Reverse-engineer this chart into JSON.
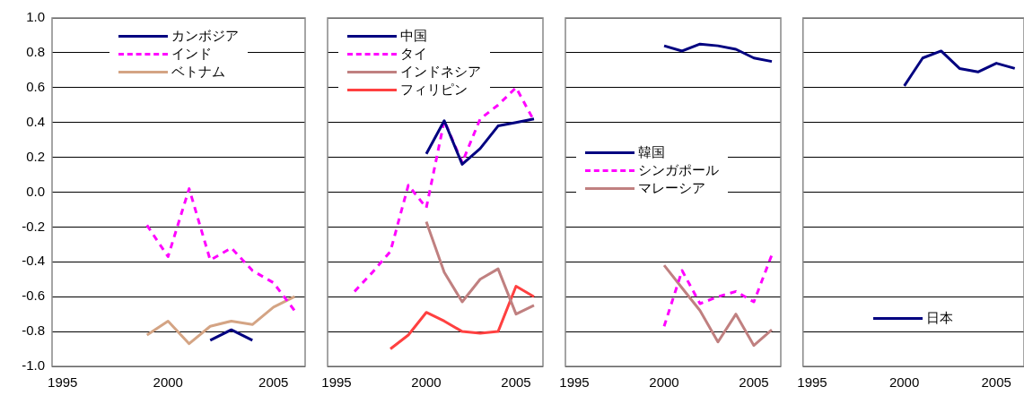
{
  "chart_data": [
    {
      "type": "line",
      "xlim": [
        1994.5,
        2006.5
      ],
      "xticks": [
        1995,
        2000,
        2005
      ],
      "ylim": [
        -1.0,
        1.0
      ],
      "yticks": [
        {
          "value": -1.0,
          "label": "-1.0"
        },
        {
          "value": -0.8,
          "label": "-0.8"
        },
        {
          "value": -0.6,
          "label": "-0.6"
        },
        {
          "value": -0.4,
          "label": "-0.4"
        },
        {
          "value": -0.2,
          "label": "-0.2"
        },
        {
          "value": 0,
          "label": "0.0"
        },
        {
          "value": 0.2,
          "label": "0.2"
        },
        {
          "value": 0.4,
          "label": "0.4"
        },
        {
          "value": 0.6,
          "label": "0.6"
        },
        {
          "value": 0.8,
          "label": "0.8"
        },
        {
          "value": 1.0,
          "label": "1.0"
        }
      ],
      "grid": "y",
      "legend": "top",
      "marker": "none",
      "series": [
        {
          "name": "カンボジア",
          "color": "#000080",
          "line_style": "solid",
          "x": [
            2002,
            2003,
            2004
          ],
          "values": [
            -0.85,
            -0.79,
            -0.85
          ]
        },
        {
          "name": "インド",
          "color": "#ff00ff",
          "line_style": "dashed",
          "x": [
            1999,
            2000,
            2001,
            2002,
            2003,
            2004,
            2005,
            2006
          ],
          "values": [
            -0.19,
            -0.37,
            0.02,
            -0.39,
            -0.32,
            -0.45,
            -0.52,
            -0.68
          ]
        },
        {
          "name": "ベトナム",
          "color": "#d4a484",
          "line_style": "solid",
          "x": [
            1999,
            2000,
            2001,
            2002,
            2003,
            2004,
            2005,
            2006
          ],
          "values": [
            -0.82,
            -0.74,
            -0.87,
            -0.77,
            -0.74,
            -0.76,
            -0.66,
            -0.6
          ]
        }
      ]
    },
    {
      "type": "line",
      "xlim": [
        1994.5,
        2006.5
      ],
      "xticks": [
        1995,
        2000,
        2005
      ],
      "ylim": [
        -1.0,
        1.0
      ],
      "yticks": [
        -1.0,
        -0.8,
        -0.6,
        -0.4,
        -0.2,
        0,
        0.2,
        0.4,
        0.6,
        0.8,
        1.0
      ],
      "tick_labels": "x",
      "grid": "y",
      "legend": "top left",
      "marker": "none",
      "series": [
        {
          "name": "中国",
          "color": "#000080",
          "line_style": "solid",
          "x": [
            2000,
            2001,
            2002,
            2003,
            2004,
            2005,
            2006
          ],
          "values": [
            0.22,
            0.41,
            0.16,
            0.25,
            0.38,
            0.4,
            0.42
          ]
        },
        {
          "name": "タイ",
          "color": "#ff00ff",
          "line_style": "dashed",
          "x": [
            1996,
            1997,
            1998,
            1999,
            2000,
            2001,
            2002,
            2003,
            2004,
            2005,
            2006
          ],
          "values": [
            -0.57,
            -0.46,
            -0.34,
            0.04,
            -0.09,
            0.41,
            0.17,
            0.42,
            0.5,
            0.6,
            0.41
          ]
        },
        {
          "name": "インドネシア",
          "color": "#c08080",
          "line_style": "solid",
          "x": [
            2000,
            2001,
            2002,
            2003,
            2004,
            2005,
            2006
          ],
          "values": [
            -0.17,
            -0.46,
            -0.63,
            -0.5,
            -0.44,
            -0.7,
            -0.65
          ]
        },
        {
          "name": "フィリピン",
          "color": "#ff4040",
          "line_style": "solid",
          "x": [
            1998,
            1999,
            2000,
            2001,
            2002,
            2003,
            2004,
            2005,
            2006
          ],
          "values": [
            -0.9,
            -0.82,
            -0.69,
            -0.74,
            -0.8,
            -0.81,
            -0.8,
            -0.54,
            -0.6
          ]
        }
      ]
    },
    {
      "type": "line",
      "xlim": [
        1994.5,
        2006.5
      ],
      "xticks": [
        1995,
        2000,
        2005
      ],
      "ylim": [
        -1.0,
        1.0
      ],
      "yticks": [
        -1.0,
        -0.8,
        -0.6,
        -0.4,
        -0.2,
        0,
        0.2,
        0.4,
        0.6,
        0.8,
        1.0
      ],
      "tick_labels": "x",
      "grid": "y",
      "legend": "left",
      "marker": "none",
      "series": [
        {
          "name": "韓国",
          "color": "#000080",
          "line_style": "solid",
          "x": [
            2000,
            2001,
            2002,
            2003,
            2004,
            2005,
            2006
          ],
          "values": [
            0.84,
            0.81,
            0.85,
            0.84,
            0.82,
            0.77,
            0.75
          ]
        },
        {
          "name": "シンガポール",
          "color": "#ff00ff",
          "line_style": "dashed",
          "x": [
            2000,
            2001,
            2002,
            2003,
            2004,
            2005,
            2006
          ],
          "values": [
            -0.77,
            -0.45,
            -0.64,
            -0.6,
            -0.57,
            -0.63,
            -0.36
          ]
        },
        {
          "name": "マレーシア",
          "color": "#c08080",
          "line_style": "solid",
          "x": [
            2000,
            2001,
            2002,
            2003,
            2004,
            2005,
            2006
          ],
          "values": [
            -0.42,
            -0.55,
            -0.68,
            -0.86,
            -0.7,
            -0.88,
            -0.79
          ]
        }
      ]
    },
    {
      "type": "line",
      "xlim": [
        1994.5,
        2006.5
      ],
      "xticks": [
        1995,
        2000,
        2005
      ],
      "ylim": [
        -1.0,
        1.0
      ],
      "yticks": [
        -1.0,
        -0.8,
        -0.6,
        -0.4,
        -0.2,
        0,
        0.2,
        0.4,
        0.6,
        0.8,
        1.0
      ],
      "tick_labels": "x",
      "grid": "y",
      "legend": "bottom",
      "marker": "none",
      "series": [
        {
          "name": "日本",
          "color": "#000080",
          "line_style": "solid",
          "x": [
            2000,
            2001,
            2002,
            2003,
            2004,
            2005,
            2006
          ],
          "values": [
            0.61,
            0.77,
            0.81,
            0.71,
            0.69,
            0.74,
            0.71
          ]
        }
      ]
    }
  ]
}
